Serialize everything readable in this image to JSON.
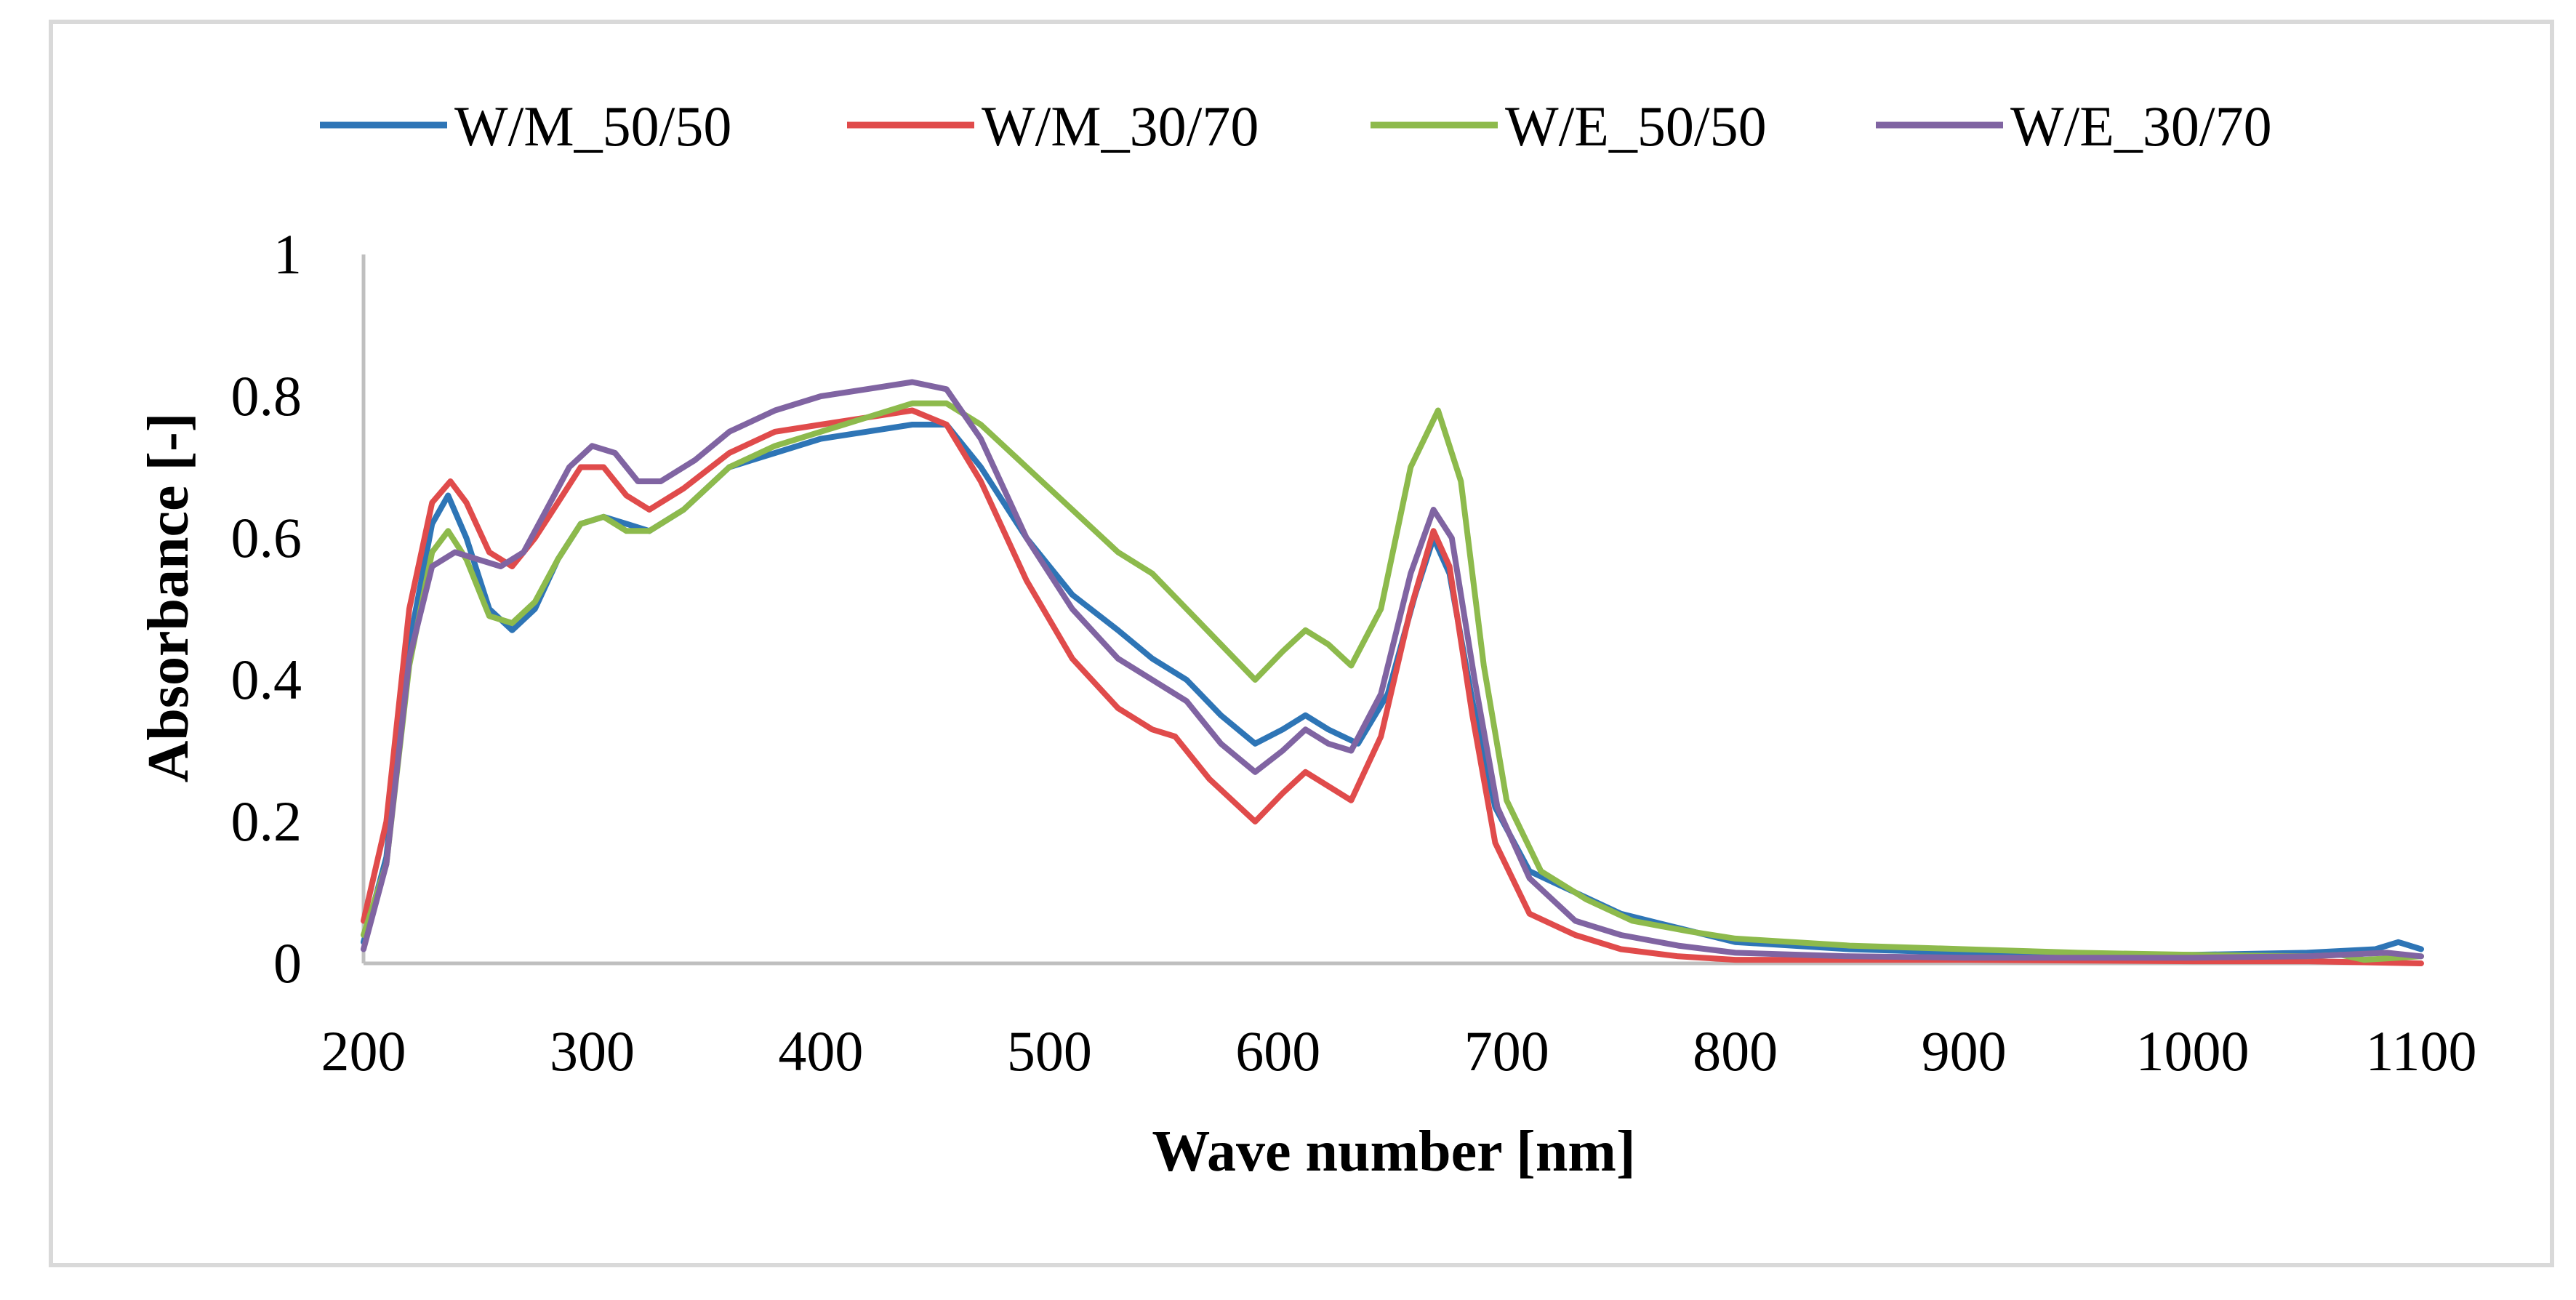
{
  "chart_data": {
    "type": "line",
    "title": "",
    "xlabel": "Wave number [nm]",
    "ylabel": "Absorbance [-]",
    "xlim": [
      200,
      1100
    ],
    "ylim": [
      0,
      1
    ],
    "x_ticks": [
      "200",
      "300",
      "400",
      "500",
      "600",
      "700",
      "800",
      "900",
      "1000",
      "1100"
    ],
    "y_ticks": [
      "0",
      "0.2",
      "0.4",
      "0.6",
      "0.8",
      "1"
    ],
    "grid": false,
    "legend_position": "top",
    "series": [
      {
        "name": "W/M_50/50",
        "color": "#2E75B6",
        "points": [
          [
            200,
            0.03
          ],
          [
            210,
            0.15
          ],
          [
            220,
            0.45
          ],
          [
            230,
            0.62
          ],
          [
            237,
            0.66
          ],
          [
            245,
            0.6
          ],
          [
            255,
            0.5
          ],
          [
            265,
            0.47
          ],
          [
            275,
            0.5
          ],
          [
            285,
            0.57
          ],
          [
            295,
            0.62
          ],
          [
            305,
            0.63
          ],
          [
            315,
            0.62
          ],
          [
            325,
            0.61
          ],
          [
            340,
            0.64
          ],
          [
            360,
            0.7
          ],
          [
            380,
            0.72
          ],
          [
            400,
            0.74
          ],
          [
            420,
            0.75
          ],
          [
            440,
            0.76
          ],
          [
            455,
            0.76
          ],
          [
            470,
            0.7
          ],
          [
            490,
            0.6
          ],
          [
            510,
            0.52
          ],
          [
            530,
            0.47
          ],
          [
            545,
            0.43
          ],
          [
            560,
            0.4
          ],
          [
            575,
            0.35
          ],
          [
            590,
            0.31
          ],
          [
            602,
            0.33
          ],
          [
            612,
            0.35
          ],
          [
            622,
            0.33
          ],
          [
            635,
            0.31
          ],
          [
            648,
            0.38
          ],
          [
            660,
            0.52
          ],
          [
            668,
            0.6
          ],
          [
            675,
            0.55
          ],
          [
            685,
            0.37
          ],
          [
            695,
            0.22
          ],
          [
            710,
            0.13
          ],
          [
            730,
            0.1
          ],
          [
            750,
            0.07
          ],
          [
            775,
            0.05
          ],
          [
            800,
            0.03
          ],
          [
            850,
            0.02
          ],
          [
            900,
            0.015
          ],
          [
            950,
            0.012
          ],
          [
            1000,
            0.012
          ],
          [
            1050,
            0.015
          ],
          [
            1080,
            0.02
          ],
          [
            1090,
            0.03
          ],
          [
            1100,
            0.02
          ]
        ]
      },
      {
        "name": "W/M_30/70",
        "color": "#E04B4B",
        "points": [
          [
            200,
            0.06
          ],
          [
            210,
            0.2
          ],
          [
            220,
            0.5
          ],
          [
            230,
            0.65
          ],
          [
            238,
            0.68
          ],
          [
            245,
            0.65
          ],
          [
            255,
            0.58
          ],
          [
            265,
            0.56
          ],
          [
            275,
            0.6
          ],
          [
            285,
            0.65
          ],
          [
            295,
            0.7
          ],
          [
            305,
            0.7
          ],
          [
            315,
            0.66
          ],
          [
            325,
            0.64
          ],
          [
            340,
            0.67
          ],
          [
            360,
            0.72
          ],
          [
            380,
            0.75
          ],
          [
            400,
            0.76
          ],
          [
            420,
            0.77
          ],
          [
            440,
            0.78
          ],
          [
            455,
            0.76
          ],
          [
            470,
            0.68
          ],
          [
            490,
            0.54
          ],
          [
            510,
            0.43
          ],
          [
            530,
            0.36
          ],
          [
            545,
            0.33
          ],
          [
            555,
            0.32
          ],
          [
            570,
            0.26
          ],
          [
            590,
            0.2
          ],
          [
            602,
            0.24
          ],
          [
            612,
            0.27
          ],
          [
            622,
            0.25
          ],
          [
            632,
            0.23
          ],
          [
            645,
            0.32
          ],
          [
            658,
            0.5
          ],
          [
            668,
            0.61
          ],
          [
            675,
            0.56
          ],
          [
            685,
            0.35
          ],
          [
            695,
            0.17
          ],
          [
            710,
            0.07
          ],
          [
            730,
            0.04
          ],
          [
            750,
            0.02
          ],
          [
            775,
            0.01
          ],
          [
            800,
            0.005
          ],
          [
            850,
            0.005
          ],
          [
            900,
            0.005
          ],
          [
            1000,
            0.003
          ],
          [
            1050,
            0.003
          ],
          [
            1100,
            0.0
          ]
        ]
      },
      {
        "name": "W/E_50/50",
        "color": "#8DBA4C",
        "points": [
          [
            200,
            0.04
          ],
          [
            210,
            0.14
          ],
          [
            220,
            0.42
          ],
          [
            230,
            0.58
          ],
          [
            237,
            0.61
          ],
          [
            245,
            0.57
          ],
          [
            255,
            0.49
          ],
          [
            265,
            0.48
          ],
          [
            275,
            0.51
          ],
          [
            285,
            0.57
          ],
          [
            295,
            0.62
          ],
          [
            305,
            0.63
          ],
          [
            315,
            0.61
          ],
          [
            325,
            0.61
          ],
          [
            340,
            0.64
          ],
          [
            360,
            0.7
          ],
          [
            380,
            0.73
          ],
          [
            400,
            0.75
          ],
          [
            420,
            0.77
          ],
          [
            440,
            0.79
          ],
          [
            455,
            0.79
          ],
          [
            470,
            0.76
          ],
          [
            490,
            0.7
          ],
          [
            510,
            0.64
          ],
          [
            530,
            0.58
          ],
          [
            545,
            0.55
          ],
          [
            560,
            0.5
          ],
          [
            575,
            0.45
          ],
          [
            590,
            0.4
          ],
          [
            602,
            0.44
          ],
          [
            612,
            0.47
          ],
          [
            622,
            0.45
          ],
          [
            632,
            0.42
          ],
          [
            645,
            0.5
          ],
          [
            658,
            0.7
          ],
          [
            670,
            0.78
          ],
          [
            680,
            0.68
          ],
          [
            690,
            0.42
          ],
          [
            700,
            0.23
          ],
          [
            715,
            0.13
          ],
          [
            735,
            0.09
          ],
          [
            755,
            0.06
          ],
          [
            780,
            0.045
          ],
          [
            800,
            0.035
          ],
          [
            850,
            0.025
          ],
          [
            900,
            0.02
          ],
          [
            950,
            0.015
          ],
          [
            1000,
            0.012
          ],
          [
            1050,
            0.01
          ],
          [
            1065,
            0.012
          ],
          [
            1075,
            0.005
          ],
          [
            1100,
            0.01
          ]
        ]
      },
      {
        "name": "W/E_30/70",
        "color": "#8064A2",
        "points": [
          [
            200,
            0.02
          ],
          [
            210,
            0.14
          ],
          [
            220,
            0.43
          ],
          [
            230,
            0.56
          ],
          [
            240,
            0.58
          ],
          [
            250,
            0.57
          ],
          [
            260,
            0.56
          ],
          [
            270,
            0.58
          ],
          [
            280,
            0.64
          ],
          [
            290,
            0.7
          ],
          [
            300,
            0.73
          ],
          [
            310,
            0.72
          ],
          [
            320,
            0.68
          ],
          [
            330,
            0.68
          ],
          [
            345,
            0.71
          ],
          [
            360,
            0.75
          ],
          [
            380,
            0.78
          ],
          [
            400,
            0.8
          ],
          [
            420,
            0.81
          ],
          [
            440,
            0.82
          ],
          [
            455,
            0.81
          ],
          [
            470,
            0.74
          ],
          [
            490,
            0.6
          ],
          [
            510,
            0.5
          ],
          [
            530,
            0.43
          ],
          [
            545,
            0.4
          ],
          [
            560,
            0.37
          ],
          [
            575,
            0.31
          ],
          [
            590,
            0.27
          ],
          [
            602,
            0.3
          ],
          [
            612,
            0.33
          ],
          [
            622,
            0.31
          ],
          [
            632,
            0.3
          ],
          [
            645,
            0.38
          ],
          [
            658,
            0.55
          ],
          [
            668,
            0.64
          ],
          [
            676,
            0.6
          ],
          [
            686,
            0.4
          ],
          [
            696,
            0.22
          ],
          [
            710,
            0.12
          ],
          [
            730,
            0.06
          ],
          [
            750,
            0.04
          ],
          [
            775,
            0.025
          ],
          [
            800,
            0.015
          ],
          [
            850,
            0.01
          ],
          [
            900,
            0.008
          ],
          [
            950,
            0.008
          ],
          [
            1000,
            0.008
          ],
          [
            1050,
            0.01
          ],
          [
            1085,
            0.015
          ],
          [
            1100,
            0.01
          ]
        ]
      }
    ]
  }
}
